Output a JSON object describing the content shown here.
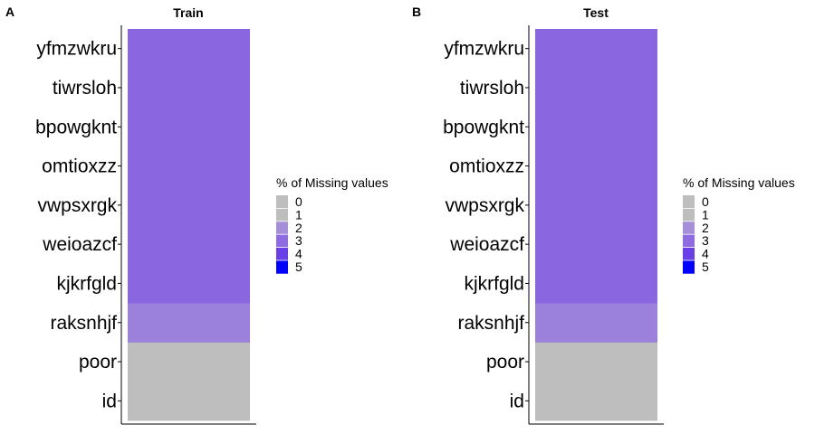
{
  "chart_data": [
    {
      "type": "heatmap",
      "panel_tag": "A",
      "title": "Train",
      "categories": [
        "id",
        "poor",
        "raksnhjf",
        "kjkrfgld",
        "weioazcf",
        "vwpsxrgk",
        "omtioxzz",
        "bpowgknt",
        "tiwrsloh",
        "yfmzwkru"
      ],
      "values": [
        0,
        0,
        2.4,
        3.1,
        3.1,
        3.1,
        3.1,
        3.1,
        3.1,
        3.1
      ]
    },
    {
      "type": "heatmap",
      "panel_tag": "B",
      "title": "Test",
      "categories": [
        "id",
        "poor",
        "raksnhjf",
        "kjkrfgld",
        "weioazcf",
        "vwpsxrgk",
        "omtioxzz",
        "bpowgknt",
        "tiwrsloh",
        "yfmzwkru"
      ],
      "values": [
        0,
        0,
        2.4,
        3.1,
        3.1,
        3.1,
        3.1,
        3.1,
        3.1,
        3.1
      ]
    }
  ],
  "legend": {
    "title": "% of Missing values",
    "scale_min": 0,
    "scale_max": 5,
    "labels": [
      "0",
      "1",
      "2",
      "3",
      "4",
      "5"
    ],
    "colors": [
      "#BEBEBE",
      "#BEBEBE",
      "#A48FD8",
      "#8E6BE0",
      "#6A40E6",
      "#0000FF"
    ],
    "gradient_stops": [
      {
        "value": 0,
        "color": "#BEBEBE"
      },
      {
        "value": 1,
        "color": "#BEBEBE"
      },
      {
        "value": 2,
        "color": "#A48FD8"
      },
      {
        "value": 3,
        "color": "#8E6BE0"
      },
      {
        "value": 4,
        "color": "#6A40E6"
      },
      {
        "value": 5,
        "color": "#0000FF"
      }
    ]
  }
}
